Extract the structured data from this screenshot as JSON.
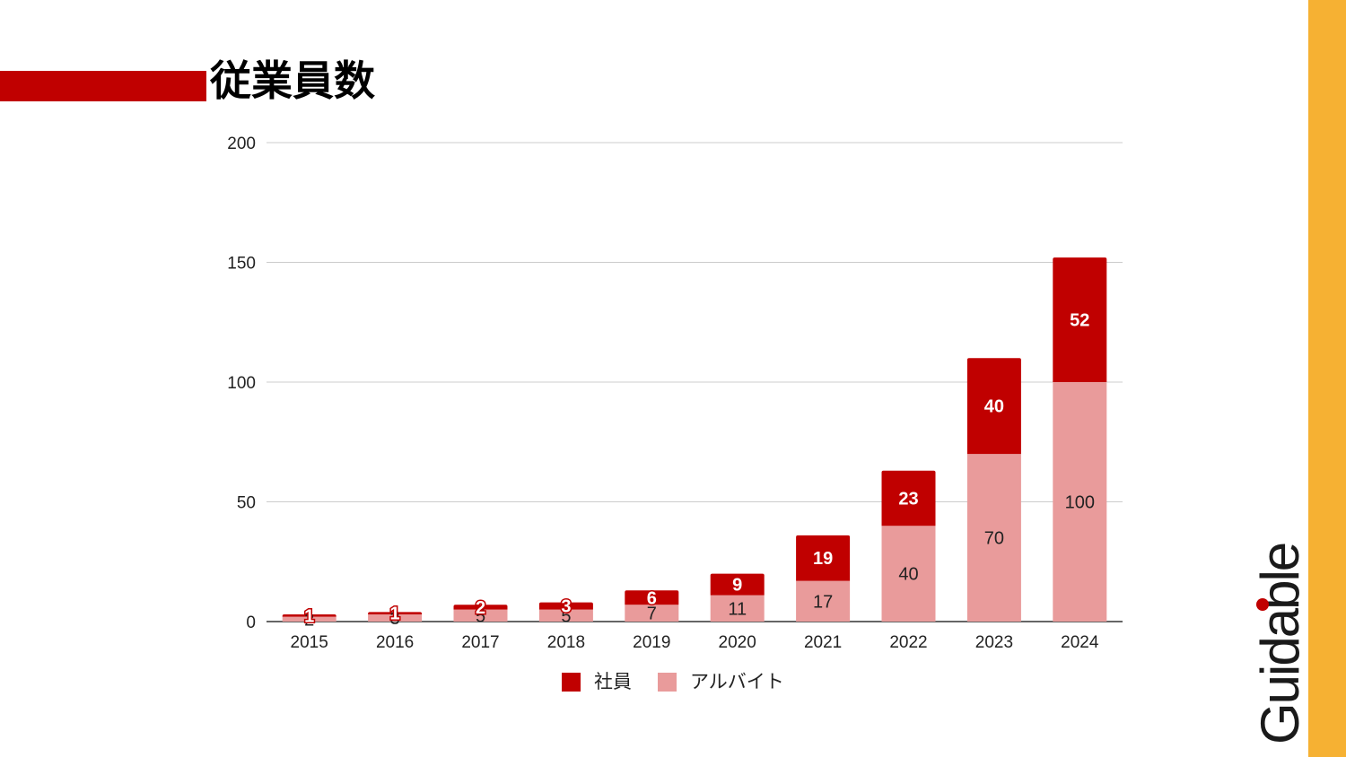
{
  "header": {
    "title": "従業員数"
  },
  "brand": {
    "logo_text": "Guidable"
  },
  "colors": {
    "accent_red": "#c00000",
    "side_bar": "#f6b133",
    "arbeit_pink": "#e99b9b",
    "grid": "#cccccc"
  },
  "chart_data": {
    "type": "bar",
    "stacked": true,
    "title": "従業員数",
    "categories": [
      "2015",
      "2016",
      "2017",
      "2018",
      "2019",
      "2020",
      "2021",
      "2022",
      "2023",
      "2024"
    ],
    "series": [
      {
        "name": "アルバイト",
        "color": "#e99b9b",
        "values": [
          2,
          3,
          5,
          5,
          7,
          11,
          17,
          40,
          70,
          100
        ]
      },
      {
        "name": "社員",
        "color": "#c00000",
        "values": [
          1,
          1,
          2,
          3,
          6,
          9,
          19,
          23,
          40,
          52
        ]
      }
    ],
    "ylim": [
      0,
      200
    ],
    "yticks": [
      0,
      50,
      100,
      150,
      200
    ],
    "grid": true,
    "legend": {
      "position": "bottom",
      "order": [
        "社員",
        "アルバイト"
      ]
    }
  }
}
